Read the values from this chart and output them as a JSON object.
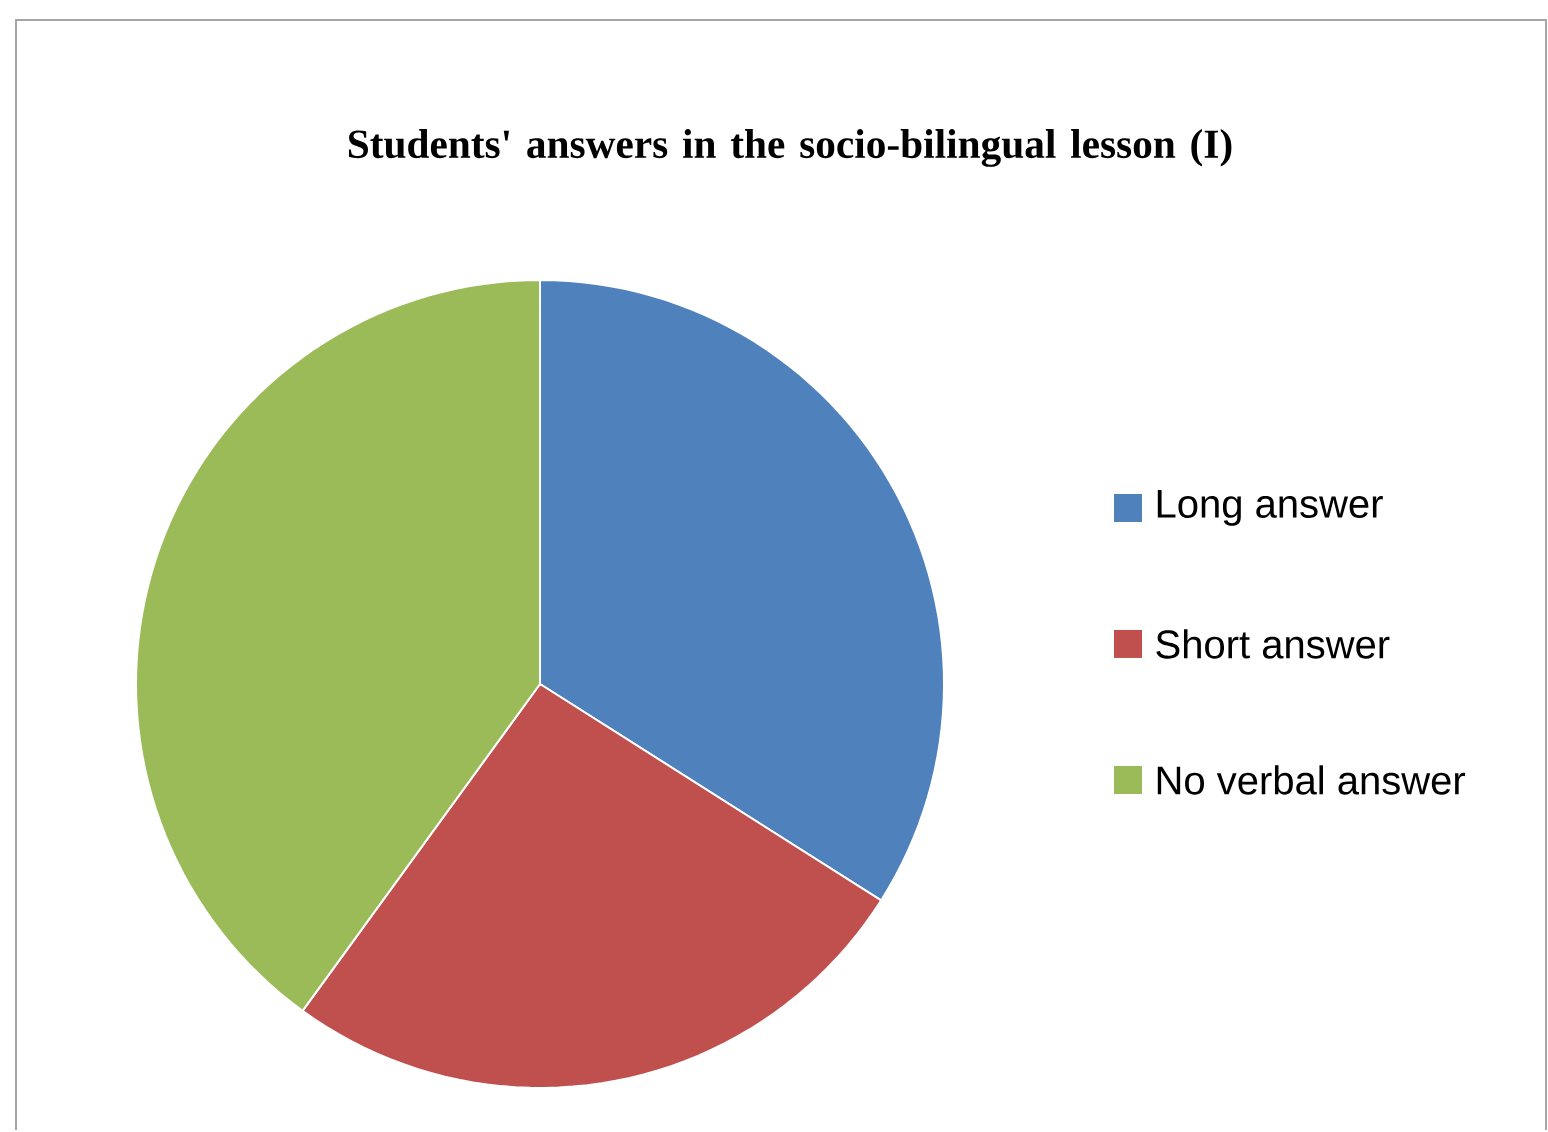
{
  "chart_data": {
    "type": "pie",
    "title": "Students' answers in the socio-bilingual lesson (I)",
    "categories": [
      "Long answer",
      "Short answer",
      "No verbal answer"
    ],
    "values": [
      34,
      26,
      40
    ],
    "colors": [
      "#4f81bd",
      "#c0504d",
      "#9bbb59"
    ],
    "legend": "right"
  }
}
